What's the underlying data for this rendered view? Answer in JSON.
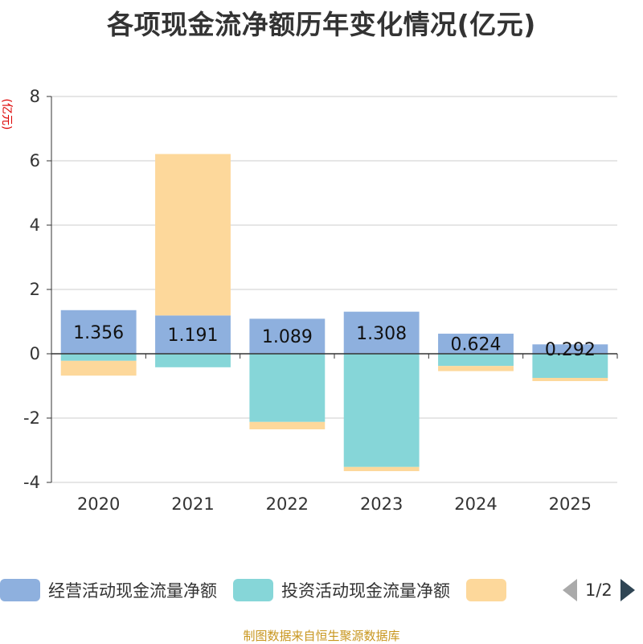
{
  "title": "各项现金流净额历年变化情况(亿元)",
  "source": "制图数据来自恒生聚源数据库",
  "legend": {
    "pager": "1/2"
  },
  "colors": {
    "operating": "#8eb0de",
    "investing": "#86d6d8",
    "financing": "#fdd89b",
    "axis": "#333333",
    "grid": "#cccccc"
  },
  "chart_data": {
    "type": "bar",
    "stacked": true,
    "title": "各项现金流净额历年变化情况(亿元)",
    "ylabel": "(亿元)",
    "ylim": [
      -4,
      8
    ],
    "yticks": [
      -4,
      -2,
      0,
      2,
      4,
      6,
      8
    ],
    "categories": [
      "2020",
      "2021",
      "2022",
      "2023",
      "2024",
      "2025"
    ],
    "series": [
      {
        "name": "经营活动现金流量净额",
        "values": [
          1.356,
          1.191,
          1.089,
          1.308,
          0.624,
          0.292
        ],
        "labels": [
          "1.356",
          "1.191",
          "1.089",
          "1.308",
          "0.624",
          "0.292"
        ]
      },
      {
        "name": "投资活动现金流量净额",
        "values": [
          -0.22,
          -0.42,
          -2.12,
          -3.52,
          -0.38,
          -0.75
        ]
      },
      {
        "name": "",
        "values": [
          -0.46,
          5.02,
          -0.23,
          -0.13,
          -0.16,
          -0.1
        ]
      }
    ],
    "legend_position": "bottom"
  }
}
